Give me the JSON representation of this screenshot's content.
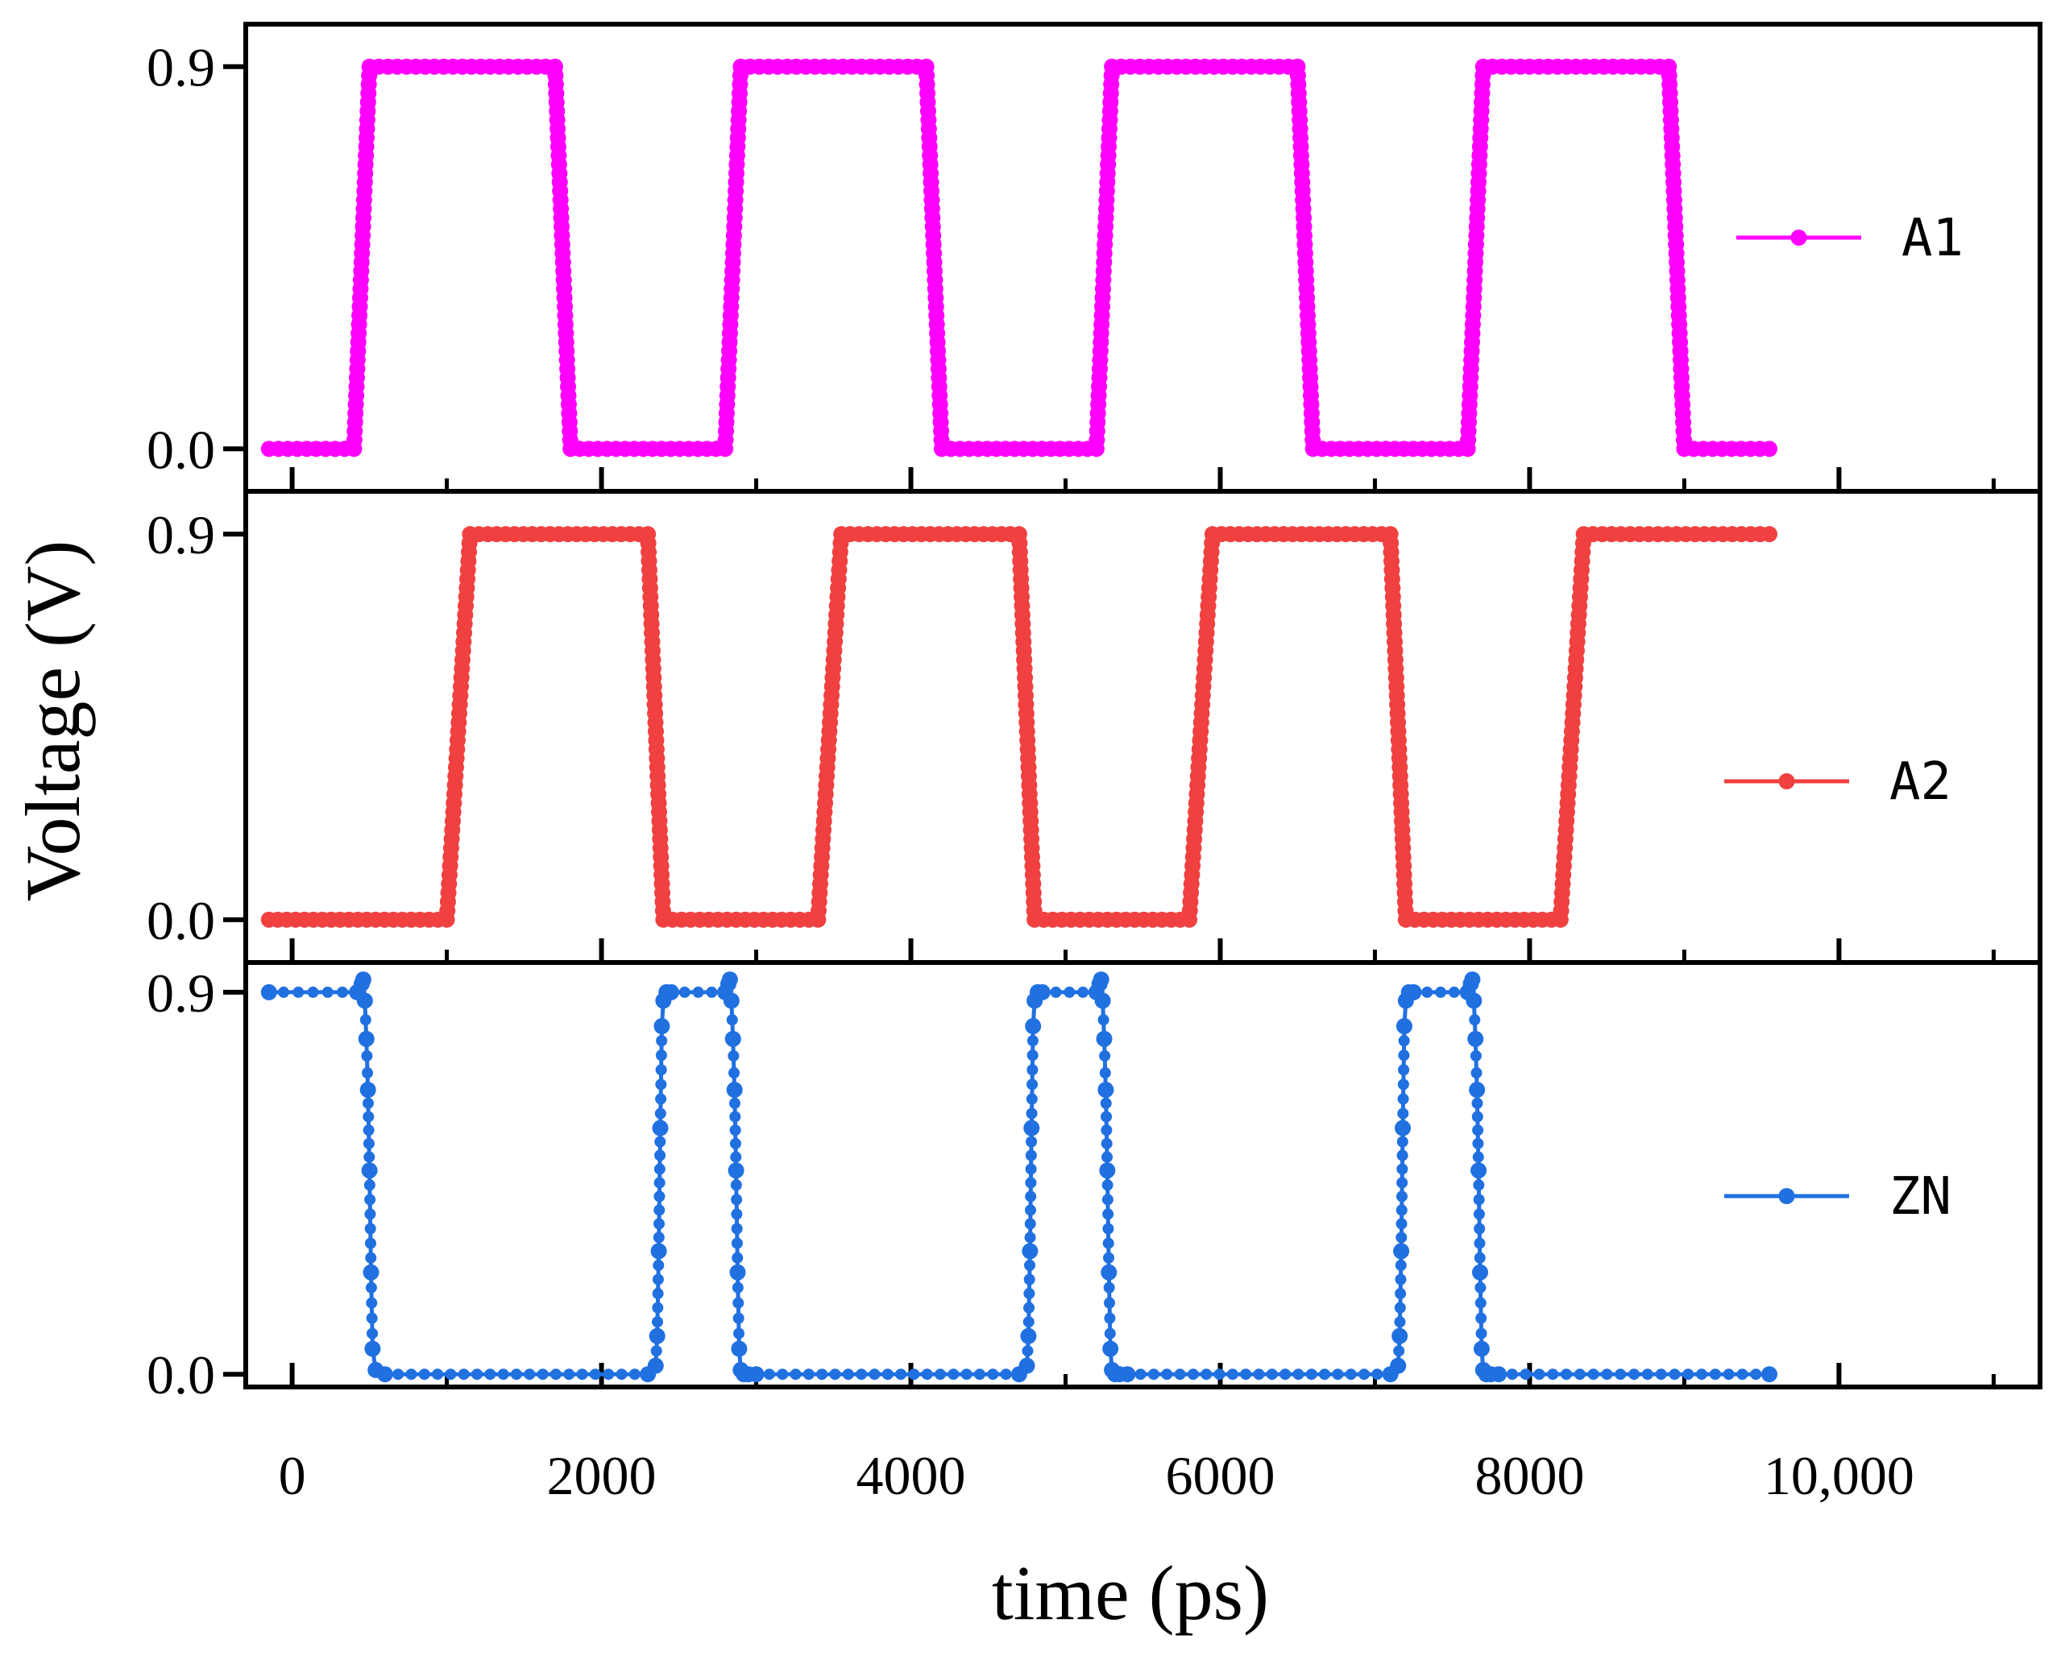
{
  "chart_data": {
    "type": "line",
    "xlabel": "time (ps)",
    "ylabel": "Voltage (V)",
    "xlim": [
      -300,
      11300
    ],
    "x_ticks": [
      0,
      2000,
      4000,
      6000,
      8000,
      10000
    ],
    "x_tick_labels": [
      "0",
      "2000",
      "4000",
      "6000",
      "8000",
      "10,000"
    ],
    "x_minor_ticks": [
      1000,
      3000,
      5000,
      7000,
      9000,
      11000
    ],
    "legend_placement": "right",
    "panels": [
      {
        "name": "A1",
        "color": "#ff00ff",
        "marker": "circle",
        "ylim": [
          -0.1,
          1.0
        ],
        "y_ticks": [
          0.0,
          0.9
        ],
        "y_tick_labels": [
          "0.0",
          "0.9"
        ],
        "x": [
          -150,
          400,
          500,
          1700,
          1800,
          2800,
          2900,
          4100,
          4200,
          5200,
          5300,
          6500,
          6600,
          7600,
          7700,
          8900,
          9000,
          9550
        ],
        "y": [
          0,
          0,
          0.9,
          0.9,
          0,
          0,
          0.9,
          0.9,
          0,
          0,
          0.9,
          0.9,
          0,
          0,
          0.9,
          0.9,
          0,
          0
        ]
      },
      {
        "name": "A2",
        "color": "#f04040",
        "marker": "circle",
        "ylim": [
          -0.1,
          1.0
        ],
        "y_ticks": [
          0.0,
          0.9
        ],
        "y_tick_labels": [
          "0.0",
          "0.9"
        ],
        "x": [
          -150,
          1000,
          1150,
          2300,
          2400,
          3400,
          3550,
          4700,
          4800,
          5800,
          5950,
          7100,
          7200,
          8200,
          8350,
          9550
        ],
        "y": [
          0,
          0,
          0.9,
          0.9,
          0,
          0,
          0.9,
          0.9,
          0,
          0,
          0.9,
          0.9,
          0,
          0,
          0.9,
          0.9
        ]
      },
      {
        "name": "ZN",
        "color": "#2070e0",
        "marker": "circle",
        "ylim": [
          -0.03,
          0.97
        ],
        "y_ticks": [
          0.0,
          0.9
        ],
        "y_tick_labels": [
          "0.0",
          "0.9"
        ],
        "x": [
          -150,
          420,
          450,
          460,
          470,
          480,
          490,
          500,
          510,
          520,
          540,
          600,
          2300,
          2350,
          2360,
          2370,
          2380,
          2390,
          2400,
          2420,
          2450,
          2800,
          2820,
          2830,
          2840,
          2850,
          2860,
          2870,
          2880,
          2890,
          2900,
          2920,
          2950,
          3000,
          4700,
          4750,
          4760,
          4770,
          4780,
          4790,
          4800,
          4820,
          4850,
          5200,
          5220,
          5230,
          5240,
          5250,
          5260,
          5270,
          5280,
          5290,
          5300,
          5320,
          5350,
          5400,
          7100,
          7150,
          7160,
          7170,
          7180,
          7190,
          7200,
          7220,
          7250,
          7600,
          7620,
          7630,
          7640,
          7650,
          7660,
          7670,
          7680,
          7690,
          7700,
          7720,
          7750,
          7800,
          9550
        ],
        "y": [
          0.9,
          0.9,
          0.92,
          0.93,
          0.88,
          0.79,
          0.67,
          0.48,
          0.24,
          0.06,
          0.01,
          0.0,
          0.0,
          0.02,
          0.09,
          0.29,
          0.58,
          0.82,
          0.88,
          0.9,
          0.9,
          0.9,
          0.92,
          0.93,
          0.88,
          0.79,
          0.67,
          0.48,
          0.24,
          0.06,
          0.01,
          0.0,
          0.0,
          0.0,
          0.0,
          0.02,
          0.09,
          0.29,
          0.58,
          0.82,
          0.88,
          0.9,
          0.9,
          0.9,
          0.92,
          0.93,
          0.88,
          0.79,
          0.67,
          0.48,
          0.24,
          0.06,
          0.01,
          0.0,
          0.0,
          0.0,
          0.0,
          0.02,
          0.09,
          0.29,
          0.58,
          0.82,
          0.88,
          0.9,
          0.9,
          0.9,
          0.92,
          0.93,
          0.88,
          0.79,
          0.67,
          0.48,
          0.24,
          0.06,
          0.01,
          0.0,
          0.0,
          0.0,
          0.0
        ]
      }
    ]
  }
}
